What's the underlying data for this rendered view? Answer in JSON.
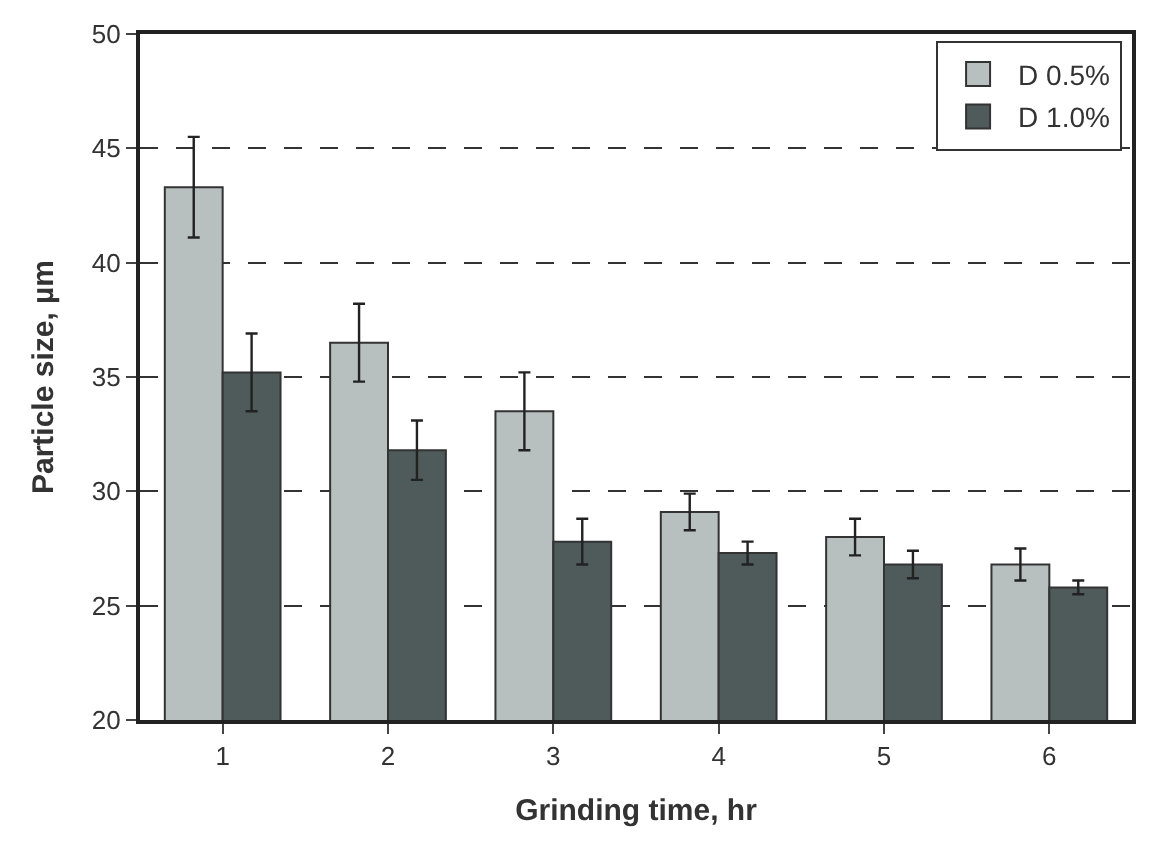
{
  "chart_data": {
    "type": "bar",
    "xlabel": "Grinding time, hr",
    "ylabel": "Particle size, µm",
    "categories": [
      "1",
      "2",
      "3",
      "4",
      "5",
      "6"
    ],
    "series": [
      {
        "name": "D 0.5%",
        "color": "#b8bfbf",
        "values": [
          43.3,
          36.5,
          33.5,
          29.1,
          28.0,
          26.8
        ],
        "errors": [
          2.2,
          1.7,
          1.7,
          0.8,
          0.8,
          0.7
        ]
      },
      {
        "name": "D 1.0%",
        "color": "#4f5a5a",
        "values": [
          35.2,
          31.8,
          27.8,
          27.3,
          26.8,
          25.8
        ],
        "errors": [
          1.7,
          1.3,
          1.0,
          0.5,
          0.6,
          0.3
        ]
      }
    ],
    "ylim": [
      20,
      50
    ],
    "yticks": [
      20,
      25,
      30,
      35,
      40,
      45,
      50
    ],
    "grid": "y",
    "legend": "top right"
  }
}
